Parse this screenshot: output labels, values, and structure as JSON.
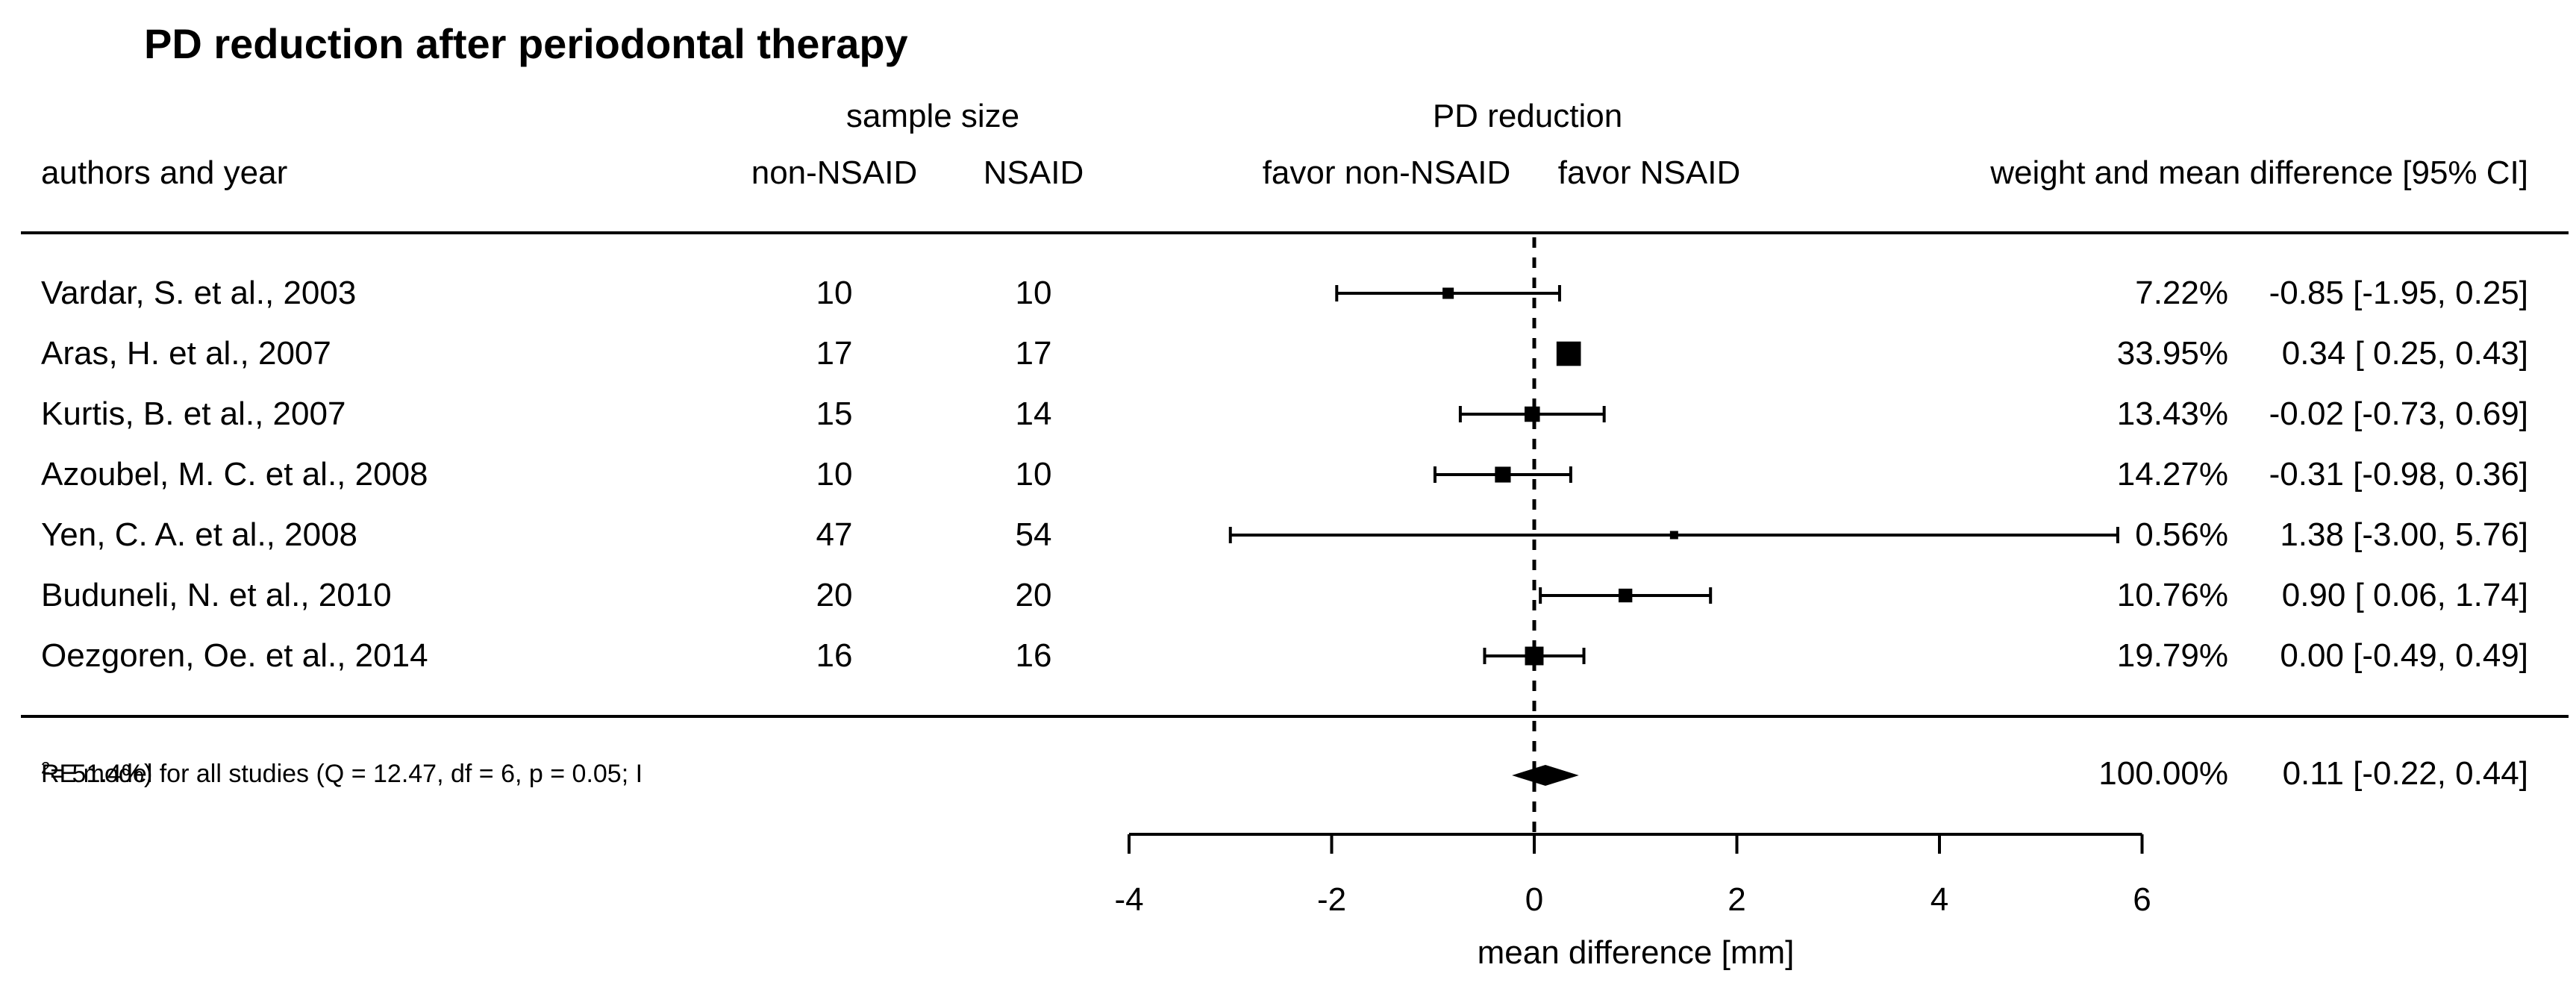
{
  "title": "PD reduction after periodontal therapy",
  "headers": {
    "sample_size_group": "sample size",
    "pd_reduction_group": "PD reduction",
    "authors": "authors and year",
    "non_nsaid": "non-NSAID",
    "nsaid": "NSAID",
    "favor_non_nsaid": "favor non-NSAID",
    "favor_nsaid": "favor NSAID",
    "weight_ci": "weight and mean difference [95% CI]"
  },
  "rows": [
    {
      "author": "Vardar, S. et al., 2003",
      "n_non_nsaid": "10",
      "n_nsaid": "10",
      "weight": "7.22%",
      "estimate": "-0.85 [-1.95, 0.25]"
    },
    {
      "author": "Aras, H. et al., 2007",
      "n_non_nsaid": "17",
      "n_nsaid": "17",
      "weight": "33.95%",
      "estimate": "0.34 [ 0.25, 0.43]"
    },
    {
      "author": "Kurtis, B. et al., 2007",
      "n_non_nsaid": "15",
      "n_nsaid": "14",
      "weight": "13.43%",
      "estimate": "-0.02 [-0.73, 0.69]"
    },
    {
      "author": "Azoubel, M. C. et al., 2008",
      "n_non_nsaid": "10",
      "n_nsaid": "10",
      "weight": "14.27%",
      "estimate": "-0.31 [-0.98, 0.36]"
    },
    {
      "author": "Yen, C. A. et al., 2008",
      "n_non_nsaid": "47",
      "n_nsaid": "54",
      "weight": "0.56%",
      "estimate": "1.38 [-3.00, 5.76]"
    },
    {
      "author": "Buduneli, N. et al., 2010",
      "n_non_nsaid": "20",
      "n_nsaid": "20",
      "weight": "10.76%",
      "estimate": "0.90 [ 0.06, 1.74]"
    },
    {
      "author": "Oezgoren, Oe. et al., 2014",
      "n_non_nsaid": "16",
      "n_nsaid": "16",
      "weight": "19.79%",
      "estimate": "0.00 [-0.49, 0.49]"
    }
  ],
  "summary": {
    "label_pre": "RE model for all studies (Q = 12.47, df = 6, p = 0.05; I",
    "label_sup": "2",
    "label_post": " = 51.4%)",
    "weight": "100.00%",
    "estimate": "0.11 [-0.22, 0.44]"
  },
  "axis": {
    "label": "mean difference [mm]",
    "ticks": [
      "-4",
      "-2",
      "0",
      "2",
      "4",
      "6"
    ]
  },
  "colors": {
    "ink": "#000000",
    "background": "#ffffff"
  },
  "chart_data": {
    "type": "forest",
    "title": "PD reduction after periodontal therapy",
    "xlabel": "mean difference [mm]",
    "x_ticks": [
      -4,
      -2,
      0,
      2,
      4,
      6
    ],
    "xlim": [
      -4,
      6
    ],
    "zero_line": 0,
    "studies": [
      {
        "label": "Vardar, S. et al., 2003",
        "n_non_nsaid": 10,
        "n_nsaid": 10,
        "mean": -0.85,
        "ci_low": -1.95,
        "ci_high": 0.25,
        "weight_pct": 7.22
      },
      {
        "label": "Aras, H. et al., 2007",
        "n_non_nsaid": 17,
        "n_nsaid": 17,
        "mean": 0.34,
        "ci_low": 0.25,
        "ci_high": 0.43,
        "weight_pct": 33.95
      },
      {
        "label": "Kurtis, B. et al., 2007",
        "n_non_nsaid": 15,
        "n_nsaid": 14,
        "mean": -0.02,
        "ci_low": -0.73,
        "ci_high": 0.69,
        "weight_pct": 13.43
      },
      {
        "label": "Azoubel, M. C. et al., 2008",
        "n_non_nsaid": 10,
        "n_nsaid": 10,
        "mean": -0.31,
        "ci_low": -0.98,
        "ci_high": 0.36,
        "weight_pct": 14.27
      },
      {
        "label": "Yen, C. A. et al., 2008",
        "n_non_nsaid": 47,
        "n_nsaid": 54,
        "mean": 1.38,
        "ci_low": -3.0,
        "ci_high": 5.76,
        "weight_pct": 0.56
      },
      {
        "label": "Buduneli, N. et al., 2010",
        "n_non_nsaid": 20,
        "n_nsaid": 20,
        "mean": 0.9,
        "ci_low": 0.06,
        "ci_high": 1.74,
        "weight_pct": 10.76
      },
      {
        "label": "Oezgoren, Oe. et al., 2014",
        "n_non_nsaid": 16,
        "n_nsaid": 16,
        "mean": 0.0,
        "ci_low": -0.49,
        "ci_high": 0.49,
        "weight_pct": 19.79
      }
    ],
    "summary": {
      "mean": 0.11,
      "ci_low": -0.22,
      "ci_high": 0.44,
      "weight_pct": 100.0,
      "heterogeneity": {
        "Q": 12.47,
        "df": 6,
        "p": 0.05,
        "I2_pct": 51.4
      }
    }
  }
}
